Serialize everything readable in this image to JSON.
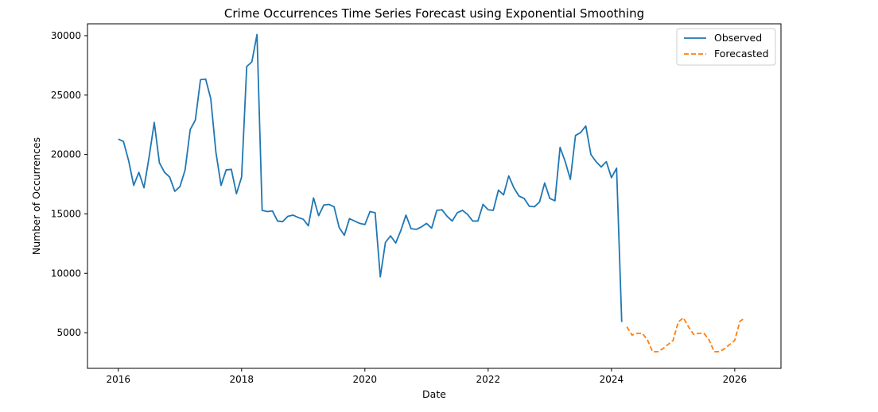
{
  "chart_data": {
    "type": "line",
    "title": "Crime Occurrences Time Series Forecast using Exponential Smoothing",
    "xlabel": "Date",
    "ylabel": "Number of Occurrences",
    "xlim": [
      2015.5,
      2026.75
    ],
    "ylim": [
      2000,
      31000
    ],
    "x_ticks": [
      2016,
      2018,
      2020,
      2022,
      2024,
      2026
    ],
    "x_tick_labels": [
      "2016",
      "2018",
      "2020",
      "2022",
      "2024",
      "2026"
    ],
    "y_ticks": [
      5000,
      10000,
      15000,
      20000,
      25000,
      30000
    ],
    "y_tick_labels": [
      "5000",
      "10000",
      "15000",
      "20000",
      "25000",
      "30000"
    ],
    "grid": false,
    "legend_position": "top-right",
    "colors": {
      "observed": "#1f77b4",
      "forecasted": "#ff7f0e"
    },
    "series": [
      {
        "name": "Observed",
        "style": "solid",
        "start": "2016-01",
        "values": [
          21300,
          21100,
          19500,
          17400,
          18500,
          17200,
          19800,
          22700,
          19300,
          18500,
          18100,
          16900,
          17300,
          18700,
          22100,
          22900,
          26300,
          26350,
          24700,
          20200,
          17400,
          18700,
          18750,
          16700,
          18100,
          27400,
          27800,
          30100,
          15300,
          15200,
          15250,
          14400,
          14350,
          14800,
          14900,
          14700,
          14550,
          14000,
          16350,
          14850,
          15750,
          15800,
          15600,
          13850,
          13200,
          14600,
          14400,
          14200,
          14100,
          15200,
          15100,
          9700,
          12600,
          13150,
          12550,
          13600,
          14900,
          13750,
          13700,
          13900,
          14200,
          13800,
          15300,
          15350,
          14800,
          14400,
          15100,
          15300,
          14950,
          14400,
          14400,
          15800,
          15350,
          15300,
          17000,
          16600,
          18200,
          17200,
          16500,
          16300,
          15650,
          15600,
          16000,
          17600,
          16300,
          16100,
          20600,
          19400,
          17900,
          21600,
          21850,
          22400,
          20000,
          19400,
          18950,
          19400,
          18050,
          18850,
          5900
        ]
      },
      {
        "name": "Forecasted",
        "style": "dashed",
        "start": "2024-04",
        "values": [
          5500,
          4800,
          4950,
          4950,
          4400,
          3400,
          3400,
          3650,
          4000,
          4350,
          5900,
          6250,
          5500,
          4850,
          4950,
          4950,
          4400,
          3400,
          3400,
          3650,
          4000,
          4350,
          5950,
          6250
        ]
      }
    ]
  }
}
